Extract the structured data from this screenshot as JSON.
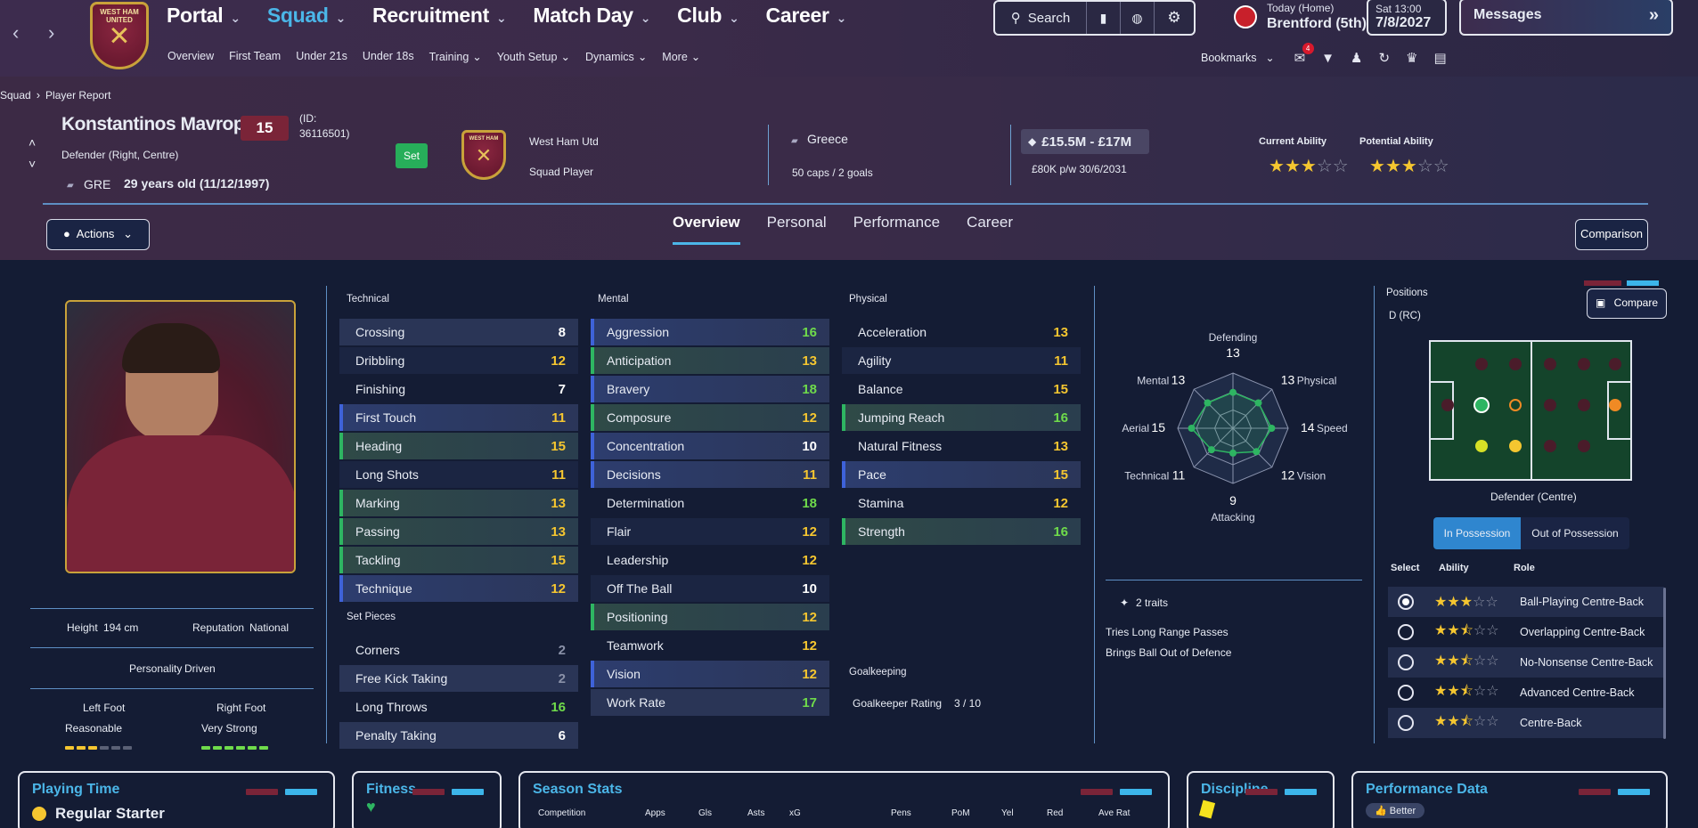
{
  "nav": {
    "back_icon": "chevron-left-icon",
    "forward_icon": "chevron-right-icon",
    "crest_text": "WEST HAM UNITED",
    "main_menu": [
      "Portal",
      "Squad",
      "Recruitment",
      "Match Day",
      "Club",
      "Career"
    ],
    "active_menu": "Squad",
    "sub_menu": [
      "Overview",
      "First Team",
      "Under 21s",
      "Under 18s",
      "Training",
      "Youth Setup",
      "Dynamics",
      "More"
    ],
    "search_label": "Search",
    "next_match": {
      "label": "Today (Home)",
      "team": "Brentford (5th)"
    },
    "date": {
      "day_time": "Sat 13:00",
      "date": "7/8/2027"
    },
    "messages_label": "Messages",
    "bookmarks_label": "Bookmarks",
    "notification_count": "4"
  },
  "breadcrumb": {
    "root": "Squad",
    "current": "Player Report"
  },
  "player": {
    "name": "Konstantinos Mavrop...",
    "number": "15",
    "id_label": "(ID:",
    "id_value": "36116501)",
    "position": "Defender (Right, Centre)",
    "nationality_code": "GRE",
    "age": "29 years old (11/12/1997)",
    "set_label": "Set",
    "club": "West Ham Utd",
    "squad_status": "Squad Player",
    "country": "Greece",
    "caps": "50 caps / 2 goals",
    "value": "£15.5M - £17M",
    "contract": "£80K p/w  30/6/2031",
    "current_ability_label": "Current Ability",
    "current_ability_stars": 3,
    "potential_ability_label": "Potential Ability",
    "potential_ability_stars": 3
  },
  "actions_label": "Actions",
  "tabs": [
    "Overview",
    "Personal",
    "Performance",
    "Career"
  ],
  "active_tab": "Overview",
  "comparison_label": "Comparison",
  "profile": {
    "height_label": "Height",
    "height_value": "194 cm",
    "reputation_label": "Reputation",
    "reputation_value": "National",
    "personality_label": "Personality",
    "personality_value": "Driven",
    "left_foot_label": "Left Foot",
    "left_foot_value": "Reasonable",
    "left_foot_level": 3,
    "right_foot_label": "Right Foot",
    "right_foot_value": "Very Strong",
    "right_foot_level": 6
  },
  "technical": {
    "label": "Technical",
    "rows": [
      {
        "name": "Crossing",
        "value": "8",
        "style": "light"
      },
      {
        "name": "Dribbling",
        "value": "12",
        "style": "dark"
      },
      {
        "name": "Finishing",
        "value": "7",
        "style": "plain"
      },
      {
        "name": "First Touch",
        "value": "11",
        "style": "blue"
      },
      {
        "name": "Heading",
        "value": "15",
        "style": "green"
      },
      {
        "name": "Long Shots",
        "value": "11",
        "style": "dark"
      },
      {
        "name": "Marking",
        "value": "13",
        "style": "green"
      },
      {
        "name": "Passing",
        "value": "13",
        "style": "green"
      },
      {
        "name": "Tackling",
        "value": "15",
        "style": "green"
      },
      {
        "name": "Technique",
        "value": "12",
        "style": "blue"
      }
    ]
  },
  "set_pieces": {
    "label": "Set Pieces",
    "rows": [
      {
        "name": "Corners",
        "value": "2",
        "style": "plain"
      },
      {
        "name": "Free Kick Taking",
        "value": "2",
        "style": "light"
      },
      {
        "name": "Long Throws",
        "value": "16",
        "style": "plain"
      },
      {
        "name": "Penalty Taking",
        "value": "6",
        "style": "light"
      }
    ]
  },
  "mental": {
    "label": "Mental",
    "rows": [
      {
        "name": "Aggression",
        "value": "16",
        "style": "blue"
      },
      {
        "name": "Anticipation",
        "value": "13",
        "style": "green"
      },
      {
        "name": "Bravery",
        "value": "18",
        "style": "blue"
      },
      {
        "name": "Composure",
        "value": "12",
        "style": "green"
      },
      {
        "name": "Concentration",
        "value": "10",
        "style": "blue"
      },
      {
        "name": "Decisions",
        "value": "11",
        "style": "blue"
      },
      {
        "name": "Determination",
        "value": "18",
        "style": "plain"
      },
      {
        "name": "Flair",
        "value": "12",
        "style": "dark"
      },
      {
        "name": "Leadership",
        "value": "12",
        "style": "plain"
      },
      {
        "name": "Off The Ball",
        "value": "10",
        "style": "dark"
      },
      {
        "name": "Positioning",
        "value": "12",
        "style": "green"
      },
      {
        "name": "Teamwork",
        "value": "12",
        "style": "plain"
      },
      {
        "name": "Vision",
        "value": "12",
        "style": "blue"
      },
      {
        "name": "Work Rate",
        "value": "17",
        "style": "light"
      }
    ]
  },
  "physical": {
    "label": "Physical",
    "rows": [
      {
        "name": "Acceleration",
        "value": "13",
        "style": "plain"
      },
      {
        "name": "Agility",
        "value": "11",
        "style": "dark"
      },
      {
        "name": "Balance",
        "value": "15",
        "style": "plain"
      },
      {
        "name": "Jumping Reach",
        "value": "16",
        "style": "green"
      },
      {
        "name": "Natural Fitness",
        "value": "13",
        "style": "plain"
      },
      {
        "name": "Pace",
        "value": "15",
        "style": "blue"
      },
      {
        "name": "Stamina",
        "value": "12",
        "style": "plain"
      },
      {
        "name": "Strength",
        "value": "16",
        "style": "green"
      }
    ]
  },
  "goalkeeping": {
    "label": "Goalkeeping",
    "rating_label": "Goalkeeper Rating",
    "rating_value": "3 / 10"
  },
  "radar": {
    "axes": [
      {
        "label": "Defending",
        "value": "13"
      },
      {
        "label": "Physical",
        "value": "13"
      },
      {
        "label": "Speed",
        "value": "14"
      },
      {
        "label": "Vision",
        "value": "12"
      },
      {
        "label": "Attacking",
        "value": "9"
      },
      {
        "label": "Technical",
        "value": "11"
      },
      {
        "label": "Aerial",
        "value": "15"
      },
      {
        "label": "Mental",
        "value": "13"
      }
    ],
    "max": 20
  },
  "traits": {
    "count_label": "2 traits",
    "items": [
      "Tries Long Range Passes",
      "Brings Ball Out of Defence"
    ]
  },
  "positions": {
    "label": "Positions",
    "value": "D (RC)",
    "compare_label": "Compare",
    "selected_role_position": "Defender (Centre)",
    "possession_tabs": [
      "In Possession",
      "Out of Possession"
    ],
    "active_possession": "In Possession",
    "headers": [
      "Select",
      "Ability",
      "Role"
    ],
    "roles": [
      {
        "name": "Ball-Playing Centre-Back",
        "stars": 3,
        "selected": true
      },
      {
        "name": "Overlapping Centre-Back",
        "stars": 2.5,
        "selected": false
      },
      {
        "name": "No-Nonsense Centre-Back",
        "stars": 2.5,
        "selected": false
      },
      {
        "name": "Advanced Centre-Back",
        "stars": 2.5,
        "selected": false
      },
      {
        "name": "Centre-Back",
        "stars": 2.5,
        "selected": false
      }
    ]
  },
  "cards": {
    "playing_time": {
      "title": "Playing Time",
      "value": "Regular Starter"
    },
    "fitness": {
      "title": "Fitness"
    },
    "season_stats": {
      "title": "Season Stats",
      "columns": [
        "Competition",
        "Apps",
        "Gls",
        "Asts",
        "xG",
        "Pens",
        "PoM",
        "Yel",
        "Red",
        "Ave Rat"
      ]
    },
    "discipline": {
      "title": "Discipline"
    },
    "performance_data": {
      "title": "Performance Data",
      "badge": "Better"
    }
  },
  "colors": {
    "accent": "#4bb6e8",
    "maroon": "#7a2438",
    "green": "#2eb562",
    "yellow": "#f5c630"
  }
}
